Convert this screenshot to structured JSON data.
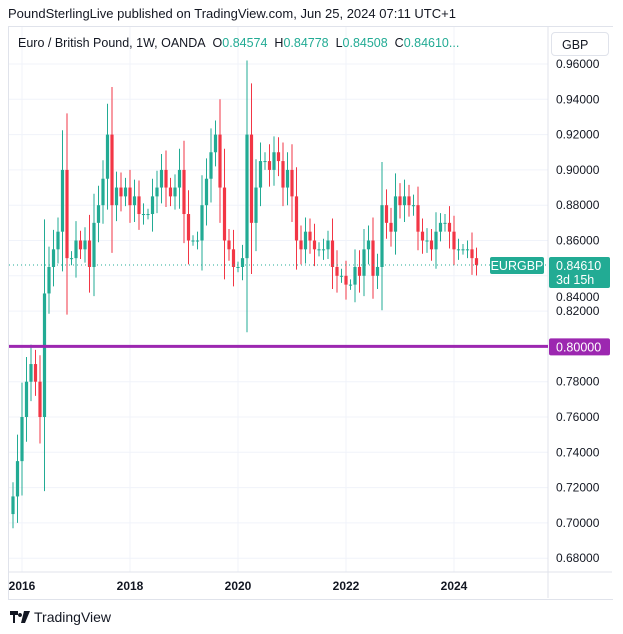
{
  "header": {
    "published": "PoundSterlingLive published on TradingView.com, Jun 25, 2024 07:11 UTC+1"
  },
  "legend": {
    "symbol": "Euro / British Pound, 1W, OANDA",
    "o_label": "O",
    "o": "0.84574",
    "h_label": "H",
    "h": "0.84778",
    "l_label": "L",
    "l": "0.84508",
    "c_label": "C",
    "c": "0.84610..."
  },
  "currency_button": "GBP",
  "footer": {
    "brand": "TradingView"
  },
  "colors": {
    "up": "#22ab94",
    "down": "#f23645",
    "level_line": "#9c27b0",
    "grid": "#f0f3fa"
  },
  "chart_data": {
    "type": "candlestick",
    "interval": "1W (drawn monthly approximation)",
    "start_month": "2015-11",
    "closes": [
      0.715,
      0.735,
      0.76,
      0.78,
      0.79,
      0.78,
      0.76,
      0.83,
      0.845,
      0.855,
      0.865,
      0.9,
      0.85,
      0.85,
      0.86,
      0.855,
      0.86,
      0.845,
      0.87,
      0.88,
      0.895,
      0.92,
      0.88,
      0.89,
      0.885,
      0.89,
      0.88,
      0.885,
      0.875,
      0.875,
      0.875,
      0.885,
      0.89,
      0.9,
      0.89,
      0.885,
      0.89,
      0.9,
      0.875,
      0.86,
      0.86,
      0.86,
      0.88,
      0.895,
      0.91,
      0.92,
      0.89,
      0.86,
      0.855,
      0.845,
      0.845,
      0.85,
      0.92,
      0.87,
      0.89,
      0.905,
      0.905,
      0.9,
      0.91,
      0.905,
      0.89,
      0.9,
      0.885,
      0.86,
      0.855,
      0.865,
      0.86,
      0.855,
      0.855,
      0.855,
      0.86,
      0.845,
      0.84,
      0.84,
      0.835,
      0.835,
      0.845,
      0.84,
      0.855,
      0.86,
      0.84,
      0.845,
      0.88,
      0.87,
      0.865,
      0.885,
      0.88,
      0.885,
      0.88,
      0.88,
      0.865,
      0.86,
      0.86,
      0.855,
      0.865,
      0.87,
      0.87,
      0.865,
      0.855,
      0.855,
      0.855,
      0.855,
      0.85,
      0.8461
    ],
    "x_ticks": [
      "2016",
      "2018",
      "2020",
      "2022",
      "2024"
    ],
    "y_ticks": [
      "0.96000",
      "0.94000",
      "0.92000",
      "0.90000",
      "0.88000",
      "0.86000",
      "0.84000",
      "0.82000",
      "0.80000",
      "0.78000",
      "0.76000",
      "0.74000",
      "0.72000",
      "0.70000",
      "0.68000"
    ],
    "ylim": [
      0.68,
      0.96
    ],
    "grid": true,
    "last_price": 0.8461,
    "last_price_label": "0.84610",
    "symbol_tag": "EURGBP",
    "countdown": "3d 15h",
    "horizontal_level": 0.8,
    "horizontal_level_label": "0.80000"
  }
}
